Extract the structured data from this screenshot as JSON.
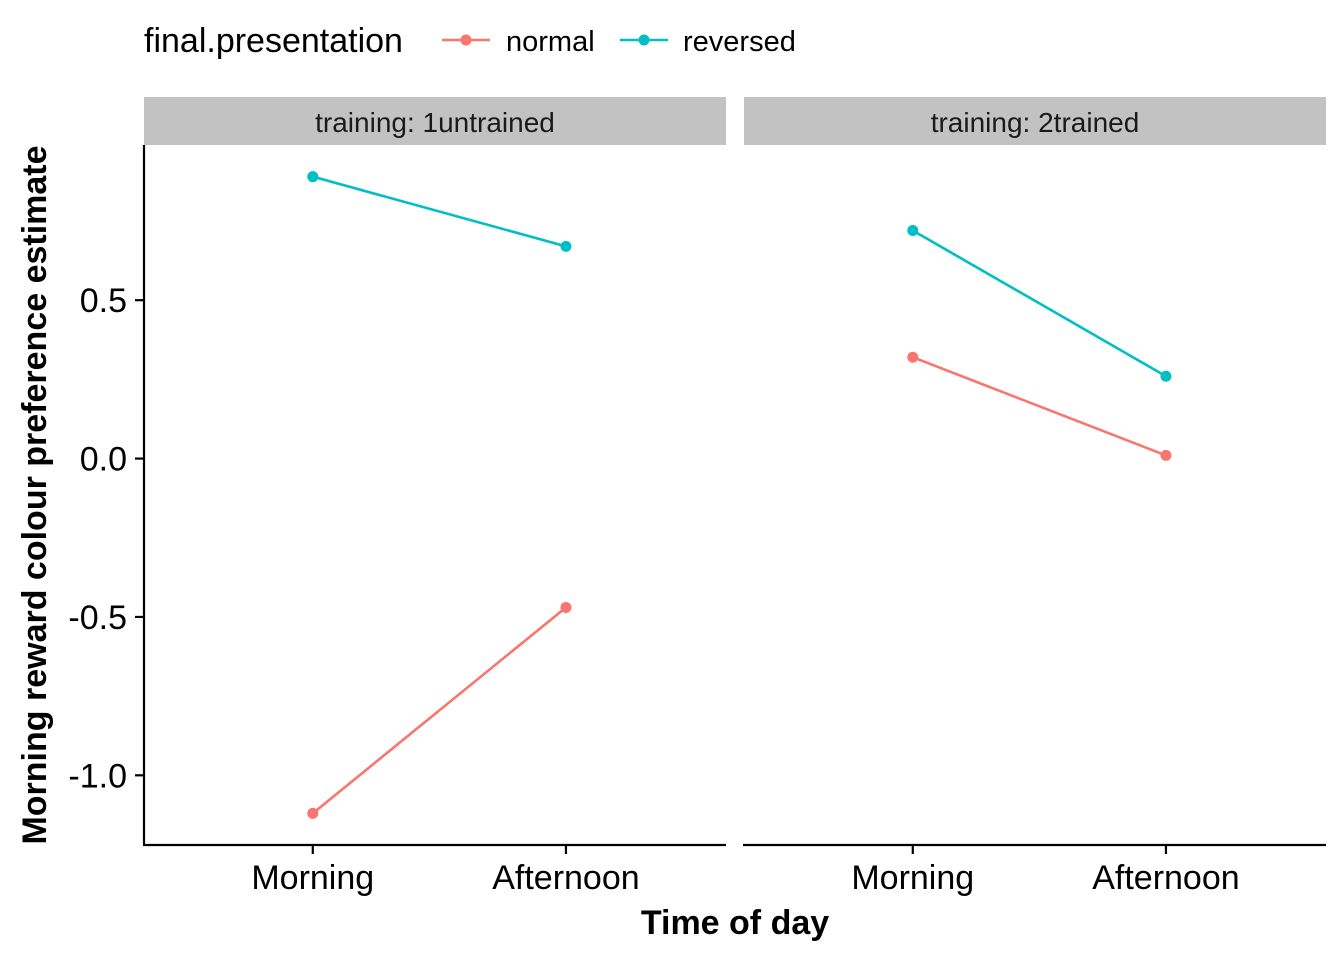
{
  "chart_data": {
    "type": "line",
    "facet_label": "training",
    "facets": [
      {
        "strip": "training: 1untrained",
        "series": [
          {
            "name": "normal",
            "values": [
              -1.12,
              -0.47
            ]
          },
          {
            "name": "reversed",
            "values": [
              0.89,
              0.67
            ]
          }
        ]
      },
      {
        "strip": "training: 2trained",
        "series": [
          {
            "name": "normal",
            "values": [
              0.32,
              0.01
            ]
          },
          {
            "name": "reversed",
            "values": [
              0.72,
              0.26
            ]
          }
        ]
      }
    ],
    "categories": [
      "Morning",
      "Afternoon"
    ],
    "legend": {
      "title": "final.presentation",
      "position": "top-left",
      "entries": [
        {
          "name": "normal",
          "color": "#F8766D"
        },
        {
          "name": "reversed",
          "color": "#00BFC4"
        }
      ]
    },
    "xlabel": "Time of day",
    "ylabel": "Morning reward colour preference estimate",
    "ylim": [
      -1.22,
      0.99
    ],
    "yticks": [
      -1.0,
      -0.5,
      0.0,
      0.5
    ],
    "ytick_labels": [
      "-1.0",
      "-0.5",
      "0.0",
      "0.5"
    ],
    "grid": false
  }
}
